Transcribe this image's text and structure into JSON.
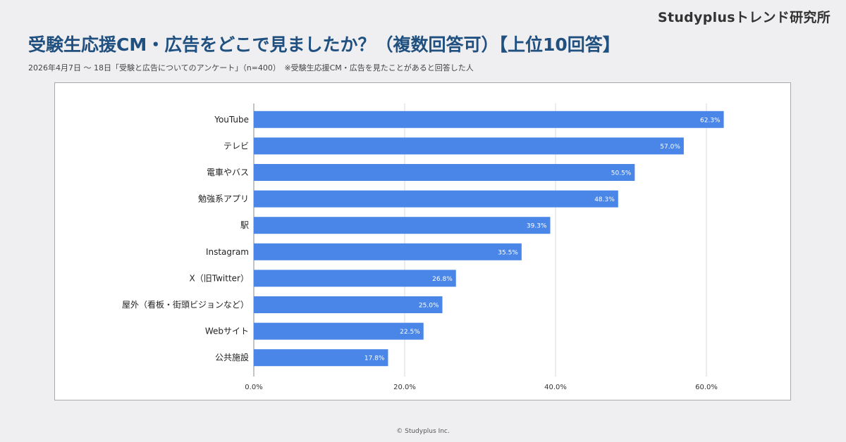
{
  "header": {
    "brand": "Studyplusトレンド研究所",
    "title": "受験生応援CM・広告をどこで見ましたか？（複数回答可）【上位10回答】",
    "subtitle": "2026年4月7日 〜 18日「受験と広告についてのアンケート」（n=400）　※受験生応援CM・広告を見たことがあると回答した人"
  },
  "footer": {
    "copyright": "© Studyplus Inc."
  },
  "colors": {
    "bar": "#4a86e8",
    "grid": "#d9d9d9"
  },
  "chart_data": {
    "type": "bar",
    "orientation": "horizontal",
    "categories": [
      "YouTube",
      "テレビ",
      "電車やバス",
      "勉強系アプリ",
      "駅",
      "Instagram",
      "X（旧Twitter）",
      "屋外（看板・街頭ビジョンなど）",
      "Webサイト",
      "公共施設"
    ],
    "values": [
      62.3,
      57.0,
      50.5,
      48.3,
      39.3,
      35.5,
      26.8,
      25.0,
      22.5,
      17.8
    ],
    "value_labels": [
      "62.3%",
      "57.0%",
      "50.5%",
      "48.3%",
      "39.3%",
      "35.5%",
      "26.8%",
      "25.0%",
      "22.5%",
      "17.8%"
    ],
    "xlim": [
      0,
      60
    ],
    "x_ticks": [
      0,
      20,
      40,
      60
    ],
    "x_tick_labels": [
      "0.0%",
      "20.0%",
      "40.0%",
      "60.0%"
    ],
    "grid": true,
    "legend": "none"
  }
}
